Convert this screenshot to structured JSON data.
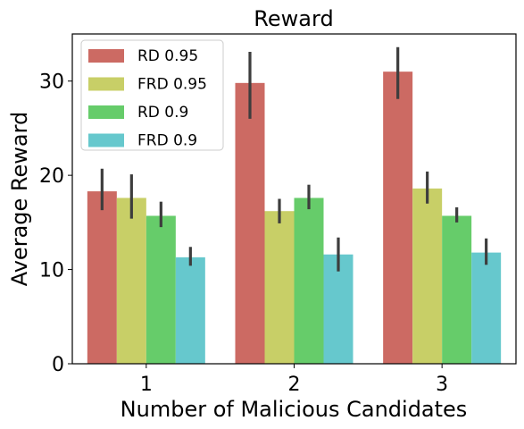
{
  "chart_data": {
    "type": "bar",
    "title": "Reward",
    "xlabel": "Number of Malicious Candidates",
    "ylabel": "Average Reward",
    "categories": [
      "1",
      "2",
      "3"
    ],
    "ylim": [
      0,
      35
    ],
    "yticks": [
      0,
      10,
      20,
      30
    ],
    "grid": false,
    "legend_position": "top-left",
    "series": [
      {
        "name": "RD 0.95",
        "color": "#cc6a63",
        "values": [
          18.3,
          29.8,
          31.0
        ],
        "ci_low": [
          16.3,
          26.0,
          28.1
        ],
        "ci_high": [
          20.7,
          33.1,
          33.6
        ]
      },
      {
        "name": "FRD 0.95",
        "color": "#c8cf67",
        "values": [
          17.6,
          16.2,
          18.6
        ],
        "ci_low": [
          15.4,
          14.9,
          17.0
        ],
        "ci_high": [
          20.1,
          17.5,
          20.4
        ]
      },
      {
        "name": "RD 0.9",
        "color": "#66cc6a",
        "values": [
          15.7,
          17.6,
          15.7
        ],
        "ci_low": [
          14.5,
          16.4,
          15.0
        ],
        "ci_high": [
          17.2,
          19.0,
          16.6
        ]
      },
      {
        "name": "FRD 0.9",
        "color": "#66c8cd",
        "values": [
          11.3,
          11.6,
          11.8
        ],
        "ci_low": [
          10.4,
          9.8,
          10.5
        ],
        "ci_high": [
          12.4,
          13.4,
          13.3
        ]
      }
    ]
  }
}
